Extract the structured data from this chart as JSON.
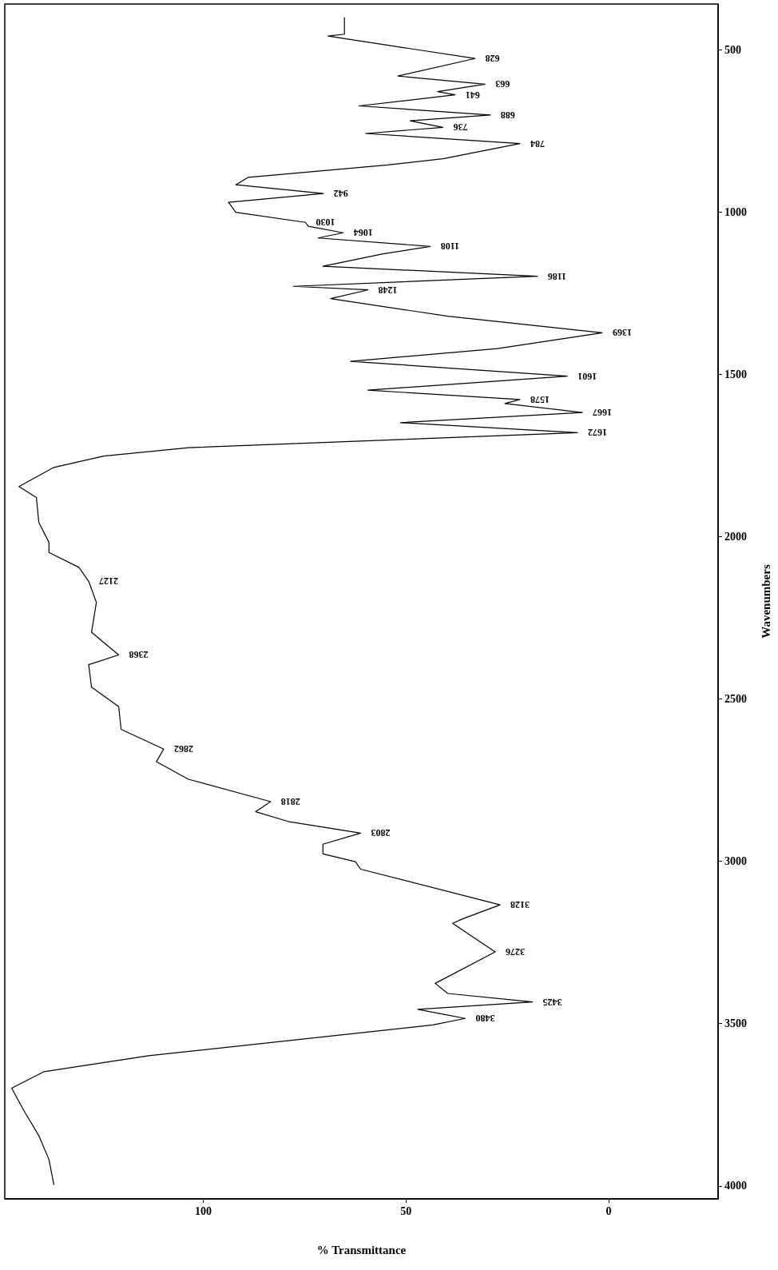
{
  "chart_data": {
    "type": "line",
    "xlabel": "% Transmittance",
    "ylabel": "Wavenumbers",
    "color": "#000000",
    "marker": "none",
    "line_style": "solid",
    "xlim": [
      149,
      -27
    ],
    "ylim": [
      4040,
      358
    ],
    "xticks": [
      100,
      50,
      0
    ],
    "yticks": [
      4000,
      3500,
      3000,
      2500,
      2000,
      1500,
      1000,
      500
    ],
    "x": [
      65.2,
      65.2,
      69.2,
      33.0,
      52.0,
      30.5,
      42.2,
      37.9,
      61.6,
      29.2,
      49.0,
      40.9,
      60.0,
      21.9,
      40.9,
      54.5,
      88.9,
      92.0,
      70.4,
      93.8,
      92.0,
      74.8,
      74.1,
      65.5,
      71.7,
      44.0,
      55.7,
      70.5,
      17.6,
      77.8,
      59.4,
      68.6,
      39.7,
      1.6,
      27.4,
      63.7,
      10.2,
      59.4,
      21.9,
      25.6,
      6.5,
      51.4,
      7.7,
      103.6,
      124.6,
      136.9,
      145.5,
      141.2,
      140.6,
      138.1,
      138.1,
      130.7,
      128.3,
      126.4,
      127.6,
      120.9,
      128.3,
      127.6,
      120.9,
      120.3,
      109.8,
      111.6,
      103.7,
      83.4,
      87.1,
      79.1,
      61.2,
      70.5,
      70.5,
      62.5,
      61.2,
      26.8,
      36.0,
      38.5,
      28.0,
      42.8,
      39.7,
      18.8,
      47.1,
      35.4,
      43.4,
      113.5,
      139.3,
      147.3,
      144.3,
      140.6,
      138.1,
      136.9
    ],
    "values": [
      400,
      451,
      457,
      526,
      580,
      605,
      628,
      638,
      672,
      700,
      718,
      738,
      757,
      788,
      835,
      854,
      892,
      915,
      942,
      969,
      1000,
      1031,
      1043,
      1063,
      1079,
      1105,
      1128,
      1166,
      1197,
      1228,
      1239,
      1266,
      1320,
      1371,
      1420,
      1459,
      1505,
      1548,
      1577,
      1589,
      1617,
      1648,
      1679,
      1725,
      1751,
      1786,
      1845,
      1879,
      1956,
      2017,
      2048,
      2094,
      2137,
      2202,
      2294,
      2364,
      2394,
      2463,
      2523,
      2593,
      2654,
      2693,
      2747,
      2816,
      2847,
      2877,
      2913,
      2947,
      2977,
      3001,
      3024,
      3134,
      3177,
      3191,
      3279,
      3376,
      3407,
      3433,
      3456,
      3484,
      3504,
      3599,
      3648,
      3699,
      3768,
      3845,
      3919,
      3996
    ],
    "annotations": [
      {
        "text": "628",
        "x": 33.0,
        "y": 526
      },
      {
        "text": "663",
        "x": 30.5,
        "y": 605
      },
      {
        "text": "641",
        "x": 37.9,
        "y": 638
      },
      {
        "text": "688",
        "x": 29.2,
        "y": 700
      },
      {
        "text": "736",
        "x": 40.9,
        "y": 738
      },
      {
        "text": "784",
        "x": 21.9,
        "y": 788
      },
      {
        "text": "942",
        "x": 70.4,
        "y": 942
      },
      {
        "text": "1030",
        "x": 74.8,
        "y": 1031
      },
      {
        "text": "1064",
        "x": 65.5,
        "y": 1063
      },
      {
        "text": "1108",
        "x": 44.0,
        "y": 1105
      },
      {
        "text": "1186",
        "x": 17.6,
        "y": 1197
      },
      {
        "text": "1248",
        "x": 59.4,
        "y": 1239
      },
      {
        "text": "1369",
        "x": 1.6,
        "y": 1371
      },
      {
        "text": "1601",
        "x": 10.2,
        "y": 1505
      },
      {
        "text": "1578",
        "x": 21.9,
        "y": 1577
      },
      {
        "text": "1667",
        "x": 6.5,
        "y": 1617
      },
      {
        "text": "1672",
        "x": 7.7,
        "y": 1679
      },
      {
        "text": "2127",
        "x": 128.3,
        "y": 2137
      },
      {
        "text": "2368",
        "x": 120.9,
        "y": 2364
      },
      {
        "text": "2862",
        "x": 109.8,
        "y": 2654
      },
      {
        "text": "2818",
        "x": 83.4,
        "y": 2816
      },
      {
        "text": "2803",
        "x": 61.2,
        "y": 2913
      },
      {
        "text": "3128",
        "x": 26.8,
        "y": 3134
      },
      {
        "text": "3276",
        "x": 28.0,
        "y": 3279
      },
      {
        "text": "3425",
        "x": 18.8,
        "y": 3433
      },
      {
        "text": "3480",
        "x": 35.4,
        "y": 3484
      }
    ]
  }
}
